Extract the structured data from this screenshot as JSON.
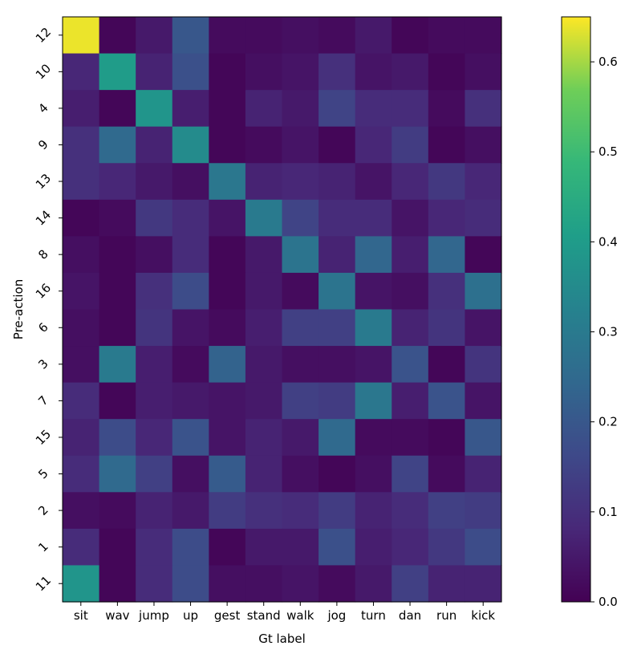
{
  "chart_data": [
    {
      "type": "heatmap",
      "xlabel": "Gt label",
      "ylabel": "Pre-action",
      "x_categories": [
        "sit",
        "wav",
        "jump",
        "up",
        "gest",
        "stand",
        "walk",
        "jog",
        "turn",
        "dan",
        "run",
        "kick"
      ],
      "y_categories": [
        "12",
        "10",
        "4",
        "9",
        "13",
        "14",
        "8",
        "16",
        "6",
        "3",
        "7",
        "15",
        "5",
        "2",
        "1",
        "11"
      ],
      "values": [
        [
          0.64,
          0.01,
          0.05,
          0.2,
          0.02,
          0.02,
          0.03,
          0.02,
          0.05,
          0.01,
          0.02,
          0.02
        ],
        [
          0.08,
          0.4,
          0.07,
          0.18,
          0.01,
          0.03,
          0.04,
          0.1,
          0.04,
          0.05,
          0.01,
          0.03
        ],
        [
          0.06,
          0.01,
          0.38,
          0.06,
          0.01,
          0.07,
          0.05,
          0.15,
          0.09,
          0.09,
          0.02,
          0.1
        ],
        [
          0.1,
          0.25,
          0.07,
          0.35,
          0.01,
          0.02,
          0.04,
          0.01,
          0.08,
          0.13,
          0.01,
          0.03
        ],
        [
          0.1,
          0.08,
          0.05,
          0.03,
          0.29,
          0.07,
          0.08,
          0.07,
          0.04,
          0.08,
          0.12,
          0.08
        ],
        [
          0.01,
          0.02,
          0.12,
          0.09,
          0.04,
          0.3,
          0.15,
          0.09,
          0.09,
          0.04,
          0.08,
          0.09
        ],
        [
          0.03,
          0.01,
          0.03,
          0.09,
          0.01,
          0.05,
          0.28,
          0.07,
          0.24,
          0.06,
          0.24,
          0.01
        ],
        [
          0.04,
          0.01,
          0.1,
          0.17,
          0.01,
          0.05,
          0.02,
          0.28,
          0.04,
          0.03,
          0.1,
          0.27
        ],
        [
          0.03,
          0.01,
          0.11,
          0.04,
          0.02,
          0.06,
          0.14,
          0.14,
          0.3,
          0.07,
          0.11,
          0.04
        ],
        [
          0.03,
          0.3,
          0.06,
          0.02,
          0.23,
          0.05,
          0.03,
          0.03,
          0.04,
          0.19,
          0.01,
          0.11
        ],
        [
          0.09,
          0.01,
          0.06,
          0.05,
          0.04,
          0.05,
          0.14,
          0.13,
          0.29,
          0.06,
          0.19,
          0.04
        ],
        [
          0.07,
          0.17,
          0.08,
          0.19,
          0.04,
          0.07,
          0.05,
          0.25,
          0.02,
          0.02,
          0.01,
          0.2
        ],
        [
          0.09,
          0.25,
          0.14,
          0.03,
          0.21,
          0.07,
          0.03,
          0.01,
          0.03,
          0.15,
          0.02,
          0.07
        ],
        [
          0.03,
          0.02,
          0.07,
          0.05,
          0.13,
          0.1,
          0.09,
          0.13,
          0.07,
          0.09,
          0.14,
          0.13
        ],
        [
          0.09,
          0.01,
          0.09,
          0.17,
          0.01,
          0.05,
          0.05,
          0.18,
          0.06,
          0.08,
          0.12,
          0.17
        ],
        [
          0.38,
          0.01,
          0.09,
          0.17,
          0.03,
          0.03,
          0.04,
          0.02,
          0.05,
          0.14,
          0.07,
          0.07
        ]
      ],
      "colormap": "viridis",
      "colorbar": {
        "range": [
          0.0,
          0.65
        ],
        "ticks": [
          0.0,
          0.1,
          0.2,
          0.3,
          0.4,
          0.5,
          0.6
        ],
        "tick_labels": [
          "0.0",
          "0.1",
          "0.2",
          "0.3",
          "0.4",
          "0.5",
          "0.6"
        ]
      },
      "grid": false
    }
  ]
}
